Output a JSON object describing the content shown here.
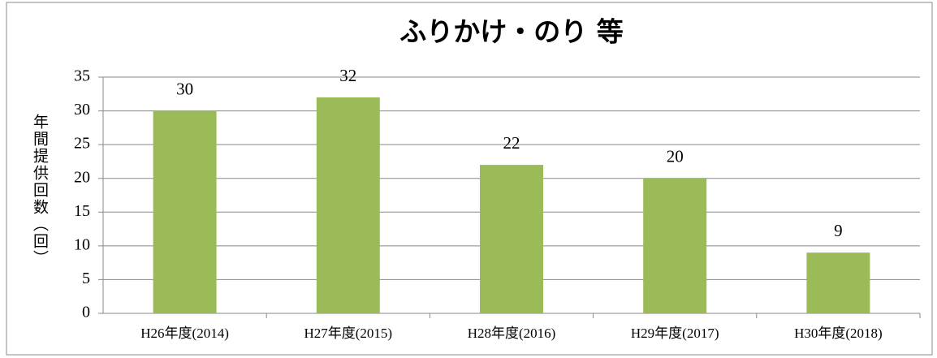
{
  "chart_data": {
    "type": "bar",
    "title": "ふりかけ・のり 等",
    "y_label": "年間提供回数（回）",
    "categories": [
      "H26年度(2014)",
      "H27年度(2015)",
      "H28年度(2016)",
      "H29年度(2017)",
      "H30年度(2018)"
    ],
    "values": [
      30,
      32,
      22,
      20,
      9
    ],
    "color": "#9bbb59",
    "ylim": [
      0,
      35
    ],
    "yticks": [
      0,
      5,
      10,
      15,
      20,
      25,
      30,
      35
    ],
    "grid": true
  }
}
